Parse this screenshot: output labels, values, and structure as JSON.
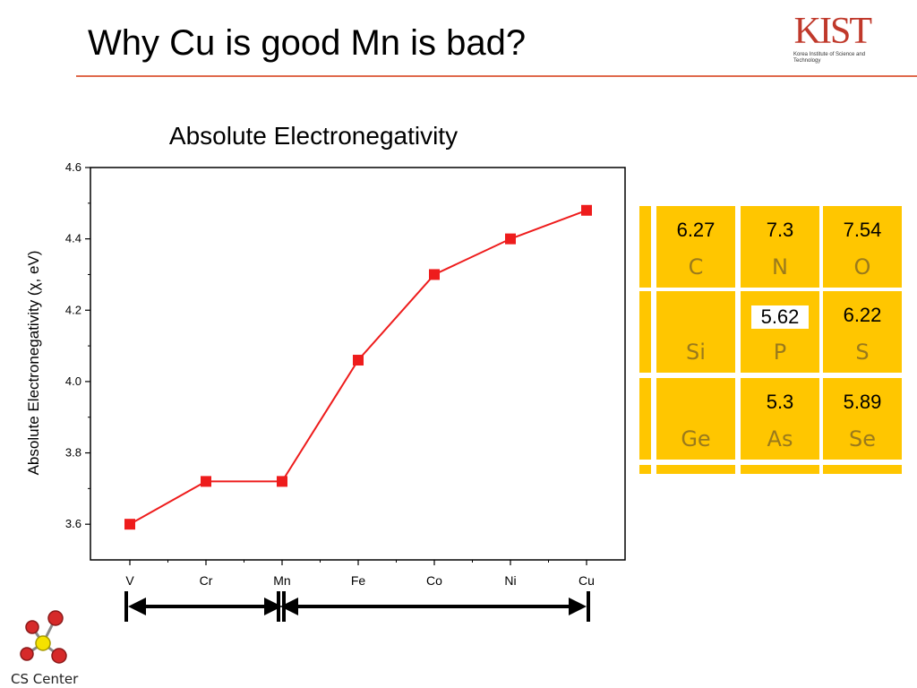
{
  "slide": {
    "title": "Why Cu is good Mn is bad?"
  },
  "logo": {
    "mark": "KIST",
    "text": "Korea Institute of Science and Technology"
  },
  "footer_logo": {
    "label": "CS Center"
  },
  "chart_data": {
    "type": "line",
    "title": "Absolute Electronegativity",
    "xlabel": "",
    "ylabel": "Absolute Electronegativity (χ, eV)",
    "categories": [
      "V",
      "Cr",
      "Mn",
      "Fe",
      "Co",
      "Ni",
      "Cu"
    ],
    "series": [
      {
        "values": [
          3.6,
          3.72,
          3.72,
          4.06,
          4.3,
          4.4,
          4.48
        ],
        "color": "#ee1c1c"
      }
    ],
    "ylim": [
      3.5,
      4.6
    ],
    "yticks": [
      "3.6",
      "3.8",
      "4.0",
      "4.2",
      "4.4",
      "4.6"
    ],
    "grid": false,
    "legend": "none",
    "annotations": [
      {
        "type": "double-arrow",
        "from": "V",
        "to": "Mn"
      },
      {
        "type": "double-arrow",
        "from": "Mn",
        "to": "Cu"
      }
    ]
  },
  "periodic_table": {
    "cell_color": "#ffc600",
    "rows": [
      [
        {
          "symbol": "C",
          "value": "6.27"
        },
        {
          "symbol": "N",
          "value": "7.3"
        },
        {
          "symbol": "O",
          "value": "7.54"
        }
      ],
      [
        {
          "symbol": "Si",
          "value": ""
        },
        {
          "symbol": "P",
          "value": "5.62"
        },
        {
          "symbol": "S",
          "value": "6.22"
        }
      ],
      [
        {
          "symbol": "Ge",
          "value": ""
        },
        {
          "symbol": "As",
          "value": "5.3"
        },
        {
          "symbol": "Se",
          "value": "5.89"
        }
      ]
    ]
  }
}
